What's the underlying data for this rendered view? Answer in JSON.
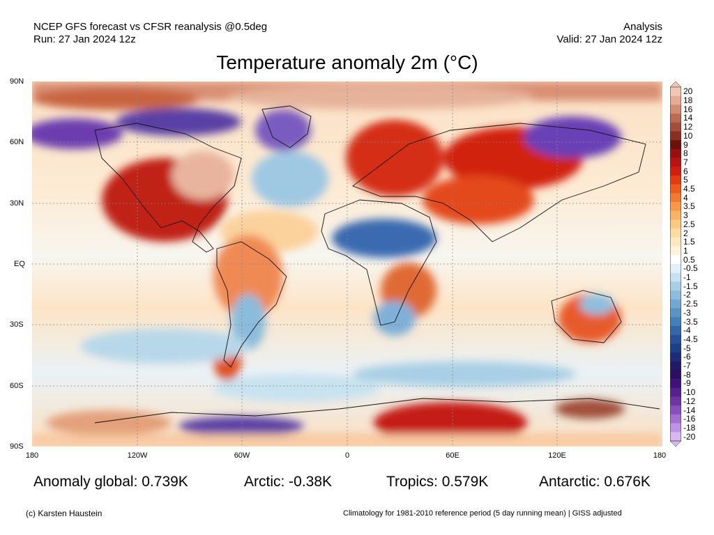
{
  "header": {
    "line1_left": "NCEP GFS forecast vs CFSR reanalysis @0.5deg",
    "line2_left": "Run: 27 Jan 2024 12z",
    "line1_right": "Analysis",
    "line2_right": "Valid: 27 Jan 2024 12z"
  },
  "title": "Temperature anomaly 2m (°C)",
  "map": {
    "lat_labels": [
      "90N",
      "60N",
      "30N",
      "EQ",
      "30S",
      "60S",
      "90S"
    ],
    "lon_labels": [
      "180",
      "120W",
      "60W",
      "0",
      "60E",
      "120E",
      "180"
    ]
  },
  "colorbar": {
    "ticks": [
      "20",
      "18",
      "16",
      "14",
      "12",
      "10",
      "9",
      "8",
      "7",
      "6",
      "5",
      "4.5",
      "4",
      "3.5",
      "3",
      "2.5",
      "2",
      "1.5",
      "1",
      "0.5",
      "-0.5",
      "-1",
      "-1.5",
      "-2",
      "-2.5",
      "-3",
      "-3.5",
      "-4",
      "-4.5",
      "-5",
      "-6",
      "-7",
      "-8",
      "-9",
      "-10",
      "-12",
      "-14",
      "-16",
      "-18",
      "-20"
    ],
    "colors": [
      "#f0c7b3",
      "#e5ac96",
      "#d38b73",
      "#bd6a52",
      "#a44d3a",
      "#8a2f22",
      "#6e0f0c",
      "#9a0d10",
      "#b8130f",
      "#d21d0f",
      "#e63b10",
      "#ef5a1d",
      "#f47a31",
      "#f79848",
      "#fab362",
      "#fcc983",
      "#fedca3",
      "#ffe9c1",
      "#fff3dc",
      "#ffffff",
      "#e2f0f8",
      "#c6e1ef",
      "#a8cfe5",
      "#8dbcdc",
      "#72a8d1",
      "#5b93c6",
      "#467eb9",
      "#3467aa",
      "#25519b",
      "#1c3f8c",
      "#1b2c78",
      "#201a68",
      "#2c0f60",
      "#3e1278",
      "#55208f",
      "#6d36a6",
      "#8750bd",
      "#a270d3",
      "#bd93e4",
      "#d8b7f2"
    ]
  },
  "stats": {
    "global": "Anomaly global: 0.739K",
    "arctic": "Arctic: -0.38K",
    "tropics": "Tropics: 0.579K",
    "antarctic": "Antarctic: 0.676K"
  },
  "footer": {
    "copyright": "(c) Karsten Haustein",
    "climatology": "Climatology for 1981-2010 reference period (5 day running mean) | GISS adjusted"
  }
}
